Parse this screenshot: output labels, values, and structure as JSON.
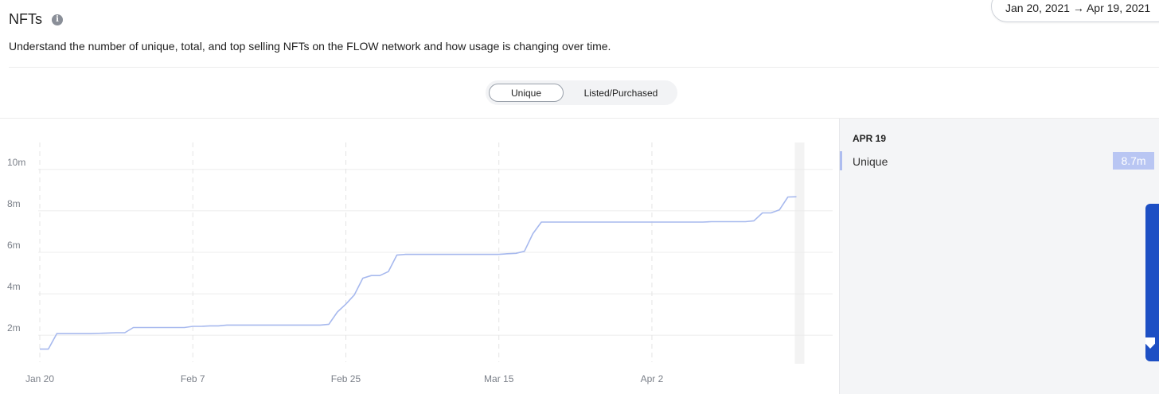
{
  "header": {
    "title": "NFTs",
    "info_icon": "info-icon",
    "info_glyph": "i",
    "date_range": "Jan 20, 2021 → Apr 19, 2021",
    "description": "Understand the number of unique, total, and top selling NFTs on the FLOW network and how usage is changing over time."
  },
  "toggle": {
    "options": [
      {
        "label": "Unique",
        "active": true
      },
      {
        "label": "Listed/Purchased",
        "active": false
      }
    ]
  },
  "tooltip": {
    "date": "APR 19",
    "series": "Unique",
    "value": "8.7m",
    "accent": "#b9c6f3"
  },
  "chart_data": {
    "type": "line",
    "title": "",
    "xlabel": "",
    "ylabel": "",
    "x_ticks": [
      "Jan 20",
      "Feb 7",
      "Feb 25",
      "Mar 15",
      "Apr 2"
    ],
    "y_ticks": [
      "2m",
      "4m",
      "6m",
      "8m",
      "10m"
    ],
    "ylim": [
      0.7,
      11.3
    ],
    "xlim": [
      "2021-01-20",
      "2021-04-19"
    ],
    "grid": true,
    "line_color": "#a7b9ee",
    "series": [
      {
        "name": "Unique",
        "unit": "m",
        "x": [
          "2021-01-20",
          "2021-01-21",
          "2021-01-22",
          "2021-01-25",
          "2021-01-26",
          "2021-01-29",
          "2021-01-30",
          "2021-01-31",
          "2021-02-01",
          "2021-02-02",
          "2021-02-03",
          "2021-02-04",
          "2021-02-05",
          "2021-02-06",
          "2021-02-07",
          "2021-02-08",
          "2021-02-09",
          "2021-02-10",
          "2021-02-11",
          "2021-02-12",
          "2021-02-13",
          "2021-02-14",
          "2021-02-15",
          "2021-02-16",
          "2021-02-17",
          "2021-02-18",
          "2021-02-19",
          "2021-02-20",
          "2021-02-21",
          "2021-02-22",
          "2021-02-23",
          "2021-02-24",
          "2021-02-25",
          "2021-02-26",
          "2021-02-27",
          "2021-02-28",
          "2021-03-01",
          "2021-03-02",
          "2021-03-03",
          "2021-03-04",
          "2021-03-05",
          "2021-03-06",
          "2021-03-07",
          "2021-03-08",
          "2021-03-09",
          "2021-03-10",
          "2021-03-11",
          "2021-03-12",
          "2021-03-13",
          "2021-03-14",
          "2021-03-15",
          "2021-03-16",
          "2021-03-17",
          "2021-03-18",
          "2021-03-19",
          "2021-03-20",
          "2021-03-21",
          "2021-03-22",
          "2021-03-23",
          "2021-03-24",
          "2021-03-25",
          "2021-03-26",
          "2021-03-27",
          "2021-03-28",
          "2021-03-29",
          "2021-03-30",
          "2021-03-31",
          "2021-04-01",
          "2021-04-02",
          "2021-04-03",
          "2021-04-04",
          "2021-04-05",
          "2021-04-06",
          "2021-04-07",
          "2021-04-08",
          "2021-04-09",
          "2021-04-10",
          "2021-04-11",
          "2021-04-12",
          "2021-04-13",
          "2021-04-14",
          "2021-04-15",
          "2021-04-16",
          "2021-04-17",
          "2021-04-18",
          "2021-04-19"
        ],
        "values": [
          1.33,
          1.33,
          2.08,
          2.08,
          2.08,
          2.12,
          2.12,
          2.37,
          2.37,
          2.37,
          2.37,
          2.37,
          2.37,
          2.37,
          2.43,
          2.43,
          2.45,
          2.45,
          2.49,
          2.49,
          2.49,
          2.49,
          2.49,
          2.49,
          2.49,
          2.49,
          2.49,
          2.49,
          2.49,
          2.49,
          2.53,
          3.12,
          3.5,
          3.95,
          4.75,
          4.88,
          4.88,
          5.07,
          5.87,
          5.9,
          5.9,
          5.9,
          5.9,
          5.9,
          5.9,
          5.9,
          5.9,
          5.9,
          5.9,
          5.9,
          5.9,
          5.93,
          5.95,
          6.05,
          6.9,
          7.46,
          7.46,
          7.46,
          7.46,
          7.46,
          7.46,
          7.46,
          7.46,
          7.46,
          7.46,
          7.46,
          7.46,
          7.46,
          7.46,
          7.46,
          7.46,
          7.46,
          7.46,
          7.46,
          7.46,
          7.48,
          7.48,
          7.48,
          7.48,
          7.48,
          7.52,
          7.9,
          7.9,
          8.05,
          8.67,
          8.68
        ]
      }
    ]
  }
}
